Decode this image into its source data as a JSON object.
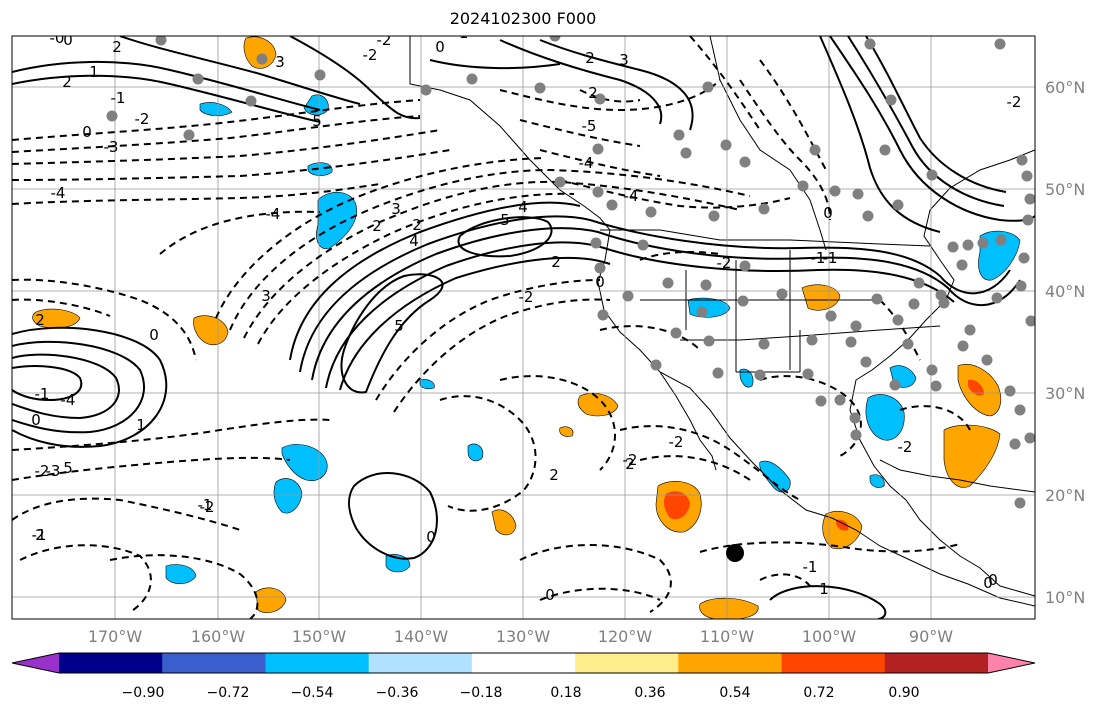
{
  "title": "2024102300 F000",
  "lat_labels": [
    "60°N",
    "50°N",
    "40°N",
    "30°N",
    "20°N",
    "10°N"
  ],
  "lon_labels": [
    "170°W",
    "160°W",
    "150°W",
    "140°W",
    "130°W",
    "120°W",
    "110°W",
    "100°W",
    "90°W"
  ],
  "colorbar": {
    "colors": [
      "#9932cc",
      "#00008b",
      "#3a5fcd",
      "#00bfff",
      "#b0e2ff",
      "#ffffff",
      "#ffec8b",
      "#ffa500",
      "#ff4500",
      "#b22222",
      "#ff82ab"
    ],
    "tick_labels": [
      "−0.90",
      "−0.72",
      "−0.54",
      "−0.36",
      "−0.18",
      "0.18",
      "0.36",
      "0.54",
      "0.72",
      "0.90"
    ]
  },
  "contour_labels": [
    "0",
    "2",
    "1",
    "2",
    "0",
    "-1",
    "-2",
    "-3",
    "-4",
    "3",
    "2",
    "2",
    "-2",
    "-1",
    "0",
    "-2",
    "-4",
    "5",
    "4",
    "3",
    "5",
    "2",
    "-5",
    "-4",
    "-4",
    "5",
    "4",
    "3",
    "2",
    "0",
    "-2",
    "-1",
    "0",
    "-4",
    "-3",
    "5",
    "2",
    "-2",
    "-2",
    "-2",
    "0",
    "2",
    "0",
    "-1",
    "1",
    "0",
    "-1",
    "-2",
    "0",
    "0",
    "-2",
    "1",
    "-1",
    "-2",
    "0",
    "-2",
    "-1",
    "2",
    "2",
    "3",
    "2",
    "-1",
    "-0"
  ]
}
